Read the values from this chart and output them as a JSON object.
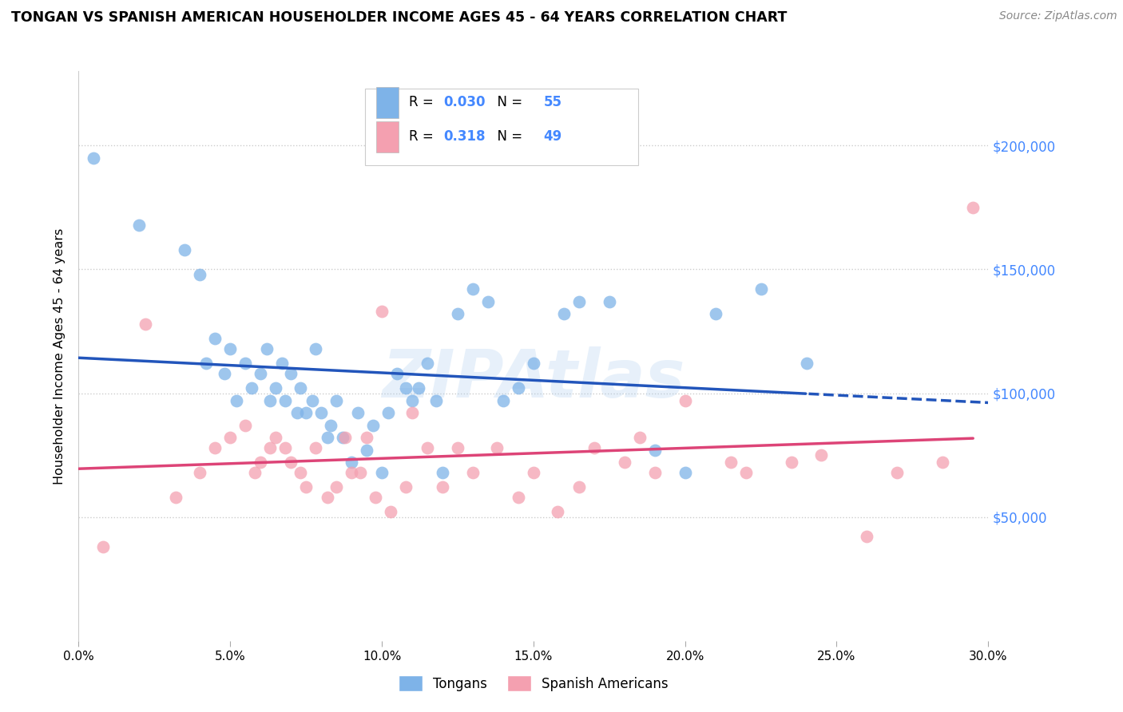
{
  "title": "TONGAN VS SPANISH AMERICAN HOUSEHOLDER INCOME AGES 45 - 64 YEARS CORRELATION CHART",
  "source": "Source: ZipAtlas.com",
  "ylabel": "Householder Income Ages 45 - 64 years",
  "xlim": [
    0.0,
    0.3
  ],
  "ylim": [
    0,
    230000
  ],
  "xticks": [
    0.0,
    0.05,
    0.1,
    0.15,
    0.2,
    0.25,
    0.3
  ],
  "xtick_labels": [
    "0.0%",
    "5.0%",
    "10.0%",
    "15.0%",
    "20.0%",
    "25.0%",
    "30.0%"
  ],
  "watermark": "ZIPAtlas",
  "tongans_color": "#7EB3E8",
  "spanish_color": "#F4A0B0",
  "tongans_R": 0.03,
  "tongans_N": 55,
  "spanish_R": 0.318,
  "spanish_N": 49,
  "tongans_line_color": "#2255BB",
  "spanish_line_color": "#DD4477",
  "tongans_x": [
    0.005,
    0.02,
    0.035,
    0.04,
    0.042,
    0.045,
    0.048,
    0.05,
    0.052,
    0.055,
    0.057,
    0.06,
    0.062,
    0.063,
    0.065,
    0.067,
    0.068,
    0.07,
    0.072,
    0.073,
    0.075,
    0.077,
    0.078,
    0.08,
    0.082,
    0.083,
    0.085,
    0.087,
    0.09,
    0.092,
    0.095,
    0.097,
    0.1,
    0.102,
    0.105,
    0.108,
    0.11,
    0.112,
    0.115,
    0.118,
    0.12,
    0.125,
    0.13,
    0.135,
    0.14,
    0.145,
    0.15,
    0.16,
    0.165,
    0.175,
    0.19,
    0.2,
    0.21,
    0.225,
    0.24
  ],
  "tongans_y": [
    195000,
    168000,
    158000,
    148000,
    112000,
    122000,
    108000,
    118000,
    97000,
    112000,
    102000,
    108000,
    118000,
    97000,
    102000,
    112000,
    97000,
    108000,
    92000,
    102000,
    92000,
    97000,
    118000,
    92000,
    82000,
    87000,
    97000,
    82000,
    72000,
    92000,
    77000,
    87000,
    68000,
    92000,
    108000,
    102000,
    97000,
    102000,
    112000,
    97000,
    68000,
    132000,
    142000,
    137000,
    97000,
    102000,
    112000,
    132000,
    137000,
    137000,
    77000,
    68000,
    132000,
    142000,
    112000
  ],
  "spanish_x": [
    0.008,
    0.022,
    0.032,
    0.04,
    0.045,
    0.05,
    0.055,
    0.058,
    0.06,
    0.063,
    0.065,
    0.068,
    0.07,
    0.073,
    0.075,
    0.078,
    0.082,
    0.085,
    0.088,
    0.09,
    0.093,
    0.095,
    0.098,
    0.1,
    0.103,
    0.108,
    0.11,
    0.115,
    0.12,
    0.125,
    0.13,
    0.138,
    0.145,
    0.15,
    0.158,
    0.165,
    0.17,
    0.18,
    0.185,
    0.19,
    0.2,
    0.215,
    0.22,
    0.235,
    0.245,
    0.26,
    0.27,
    0.285,
    0.295
  ],
  "spanish_y": [
    38000,
    128000,
    58000,
    68000,
    78000,
    82000,
    87000,
    68000,
    72000,
    78000,
    82000,
    78000,
    72000,
    68000,
    62000,
    78000,
    58000,
    62000,
    82000,
    68000,
    68000,
    82000,
    58000,
    133000,
    52000,
    62000,
    92000,
    78000,
    62000,
    78000,
    68000,
    78000,
    58000,
    68000,
    52000,
    62000,
    78000,
    72000,
    82000,
    68000,
    97000,
    72000,
    68000,
    72000,
    75000,
    42000,
    68000,
    72000,
    175000
  ]
}
